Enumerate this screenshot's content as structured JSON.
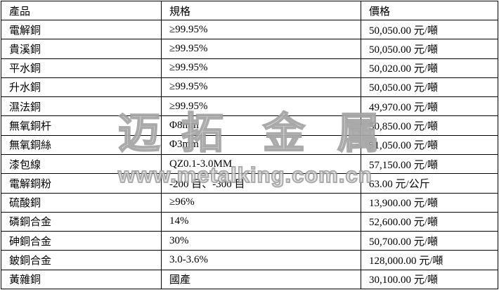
{
  "table": {
    "columns": [
      "產品",
      "規格",
      "價格"
    ],
    "rows": [
      [
        "電解銅",
        "≥99.95%",
        "50,050.00 元/噸"
      ],
      [
        "貴溪銅",
        "≥99.95%",
        "50,050.00 元/噸"
      ],
      [
        "平水銅",
        "≥99.95%",
        "50,020.00 元/噸"
      ],
      [
        "升水銅",
        "≥99.95%",
        "50,050.00 元/噸"
      ],
      [
        "濕法銅",
        "≥99.95%",
        "49,970.00 元/噸"
      ],
      [
        "無氧銅杆",
        "Φ8mm",
        "50,850.00 元/噸"
      ],
      [
        "無氧銅絲",
        "Φ3mm",
        "51,050.00 元/噸"
      ],
      [
        "漆包線",
        "QZ0.1-3.0MM",
        "57,150.00 元/噸"
      ],
      [
        "電解銅粉",
        "-200 目、-300 目",
        "63.00 元/公斤"
      ],
      [
        "硫酸銅",
        "≥96%",
        "13,900.00 元/噸"
      ],
      [
        "磷銅合金",
        "14%",
        "52,600.00 元/噸"
      ],
      [
        "砷銅合金",
        "30%",
        "50,700.00 元/噸"
      ],
      [
        "鈹銅合金",
        "3.0-3.6%",
        "128,000.00 元/噸"
      ],
      [
        "黃雜銅",
        "國產",
        "30,100.00 元/噸"
      ]
    ]
  },
  "watermark": {
    "brand_characters": [
      "迈",
      "拓",
      "金",
      "属"
    ],
    "url": "www.metalking.com.cn",
    "color": "#969696"
  },
  "colors": {
    "border": "#000000",
    "text": "#000000",
    "background": "#ffffff"
  }
}
